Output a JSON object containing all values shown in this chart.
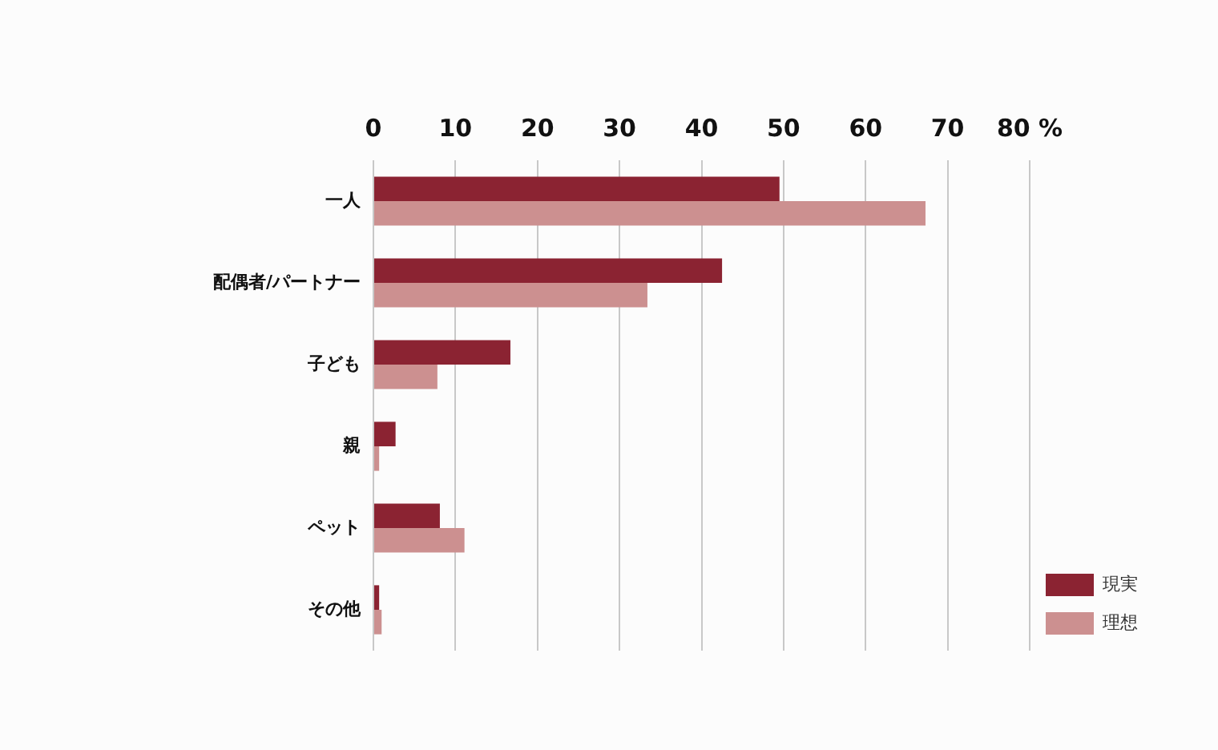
{
  "chart_data": {
    "type": "bar",
    "orientation": "horizontal",
    "categories": [
      "一人",
      "配偶者/パートナー",
      "子ども",
      "親",
      "ペット",
      "その他"
    ],
    "series": [
      {
        "name": "現実",
        "color": "#8b2332",
        "values": [
          49.5,
          42.5,
          16.7,
          2.7,
          8.1,
          0.7
        ]
      },
      {
        "name": "理想",
        "color": "#cc9090",
        "values": [
          67.3,
          33.4,
          7.8,
          0.7,
          11.1,
          1.0
        ]
      }
    ],
    "xlim": [
      0,
      80
    ],
    "xticks": [
      0,
      10,
      20,
      30,
      40,
      50,
      60,
      70,
      {
        "value": 80,
        "label": "80 %"
      }
    ],
    "grid": "x",
    "legend": "bottom right"
  }
}
